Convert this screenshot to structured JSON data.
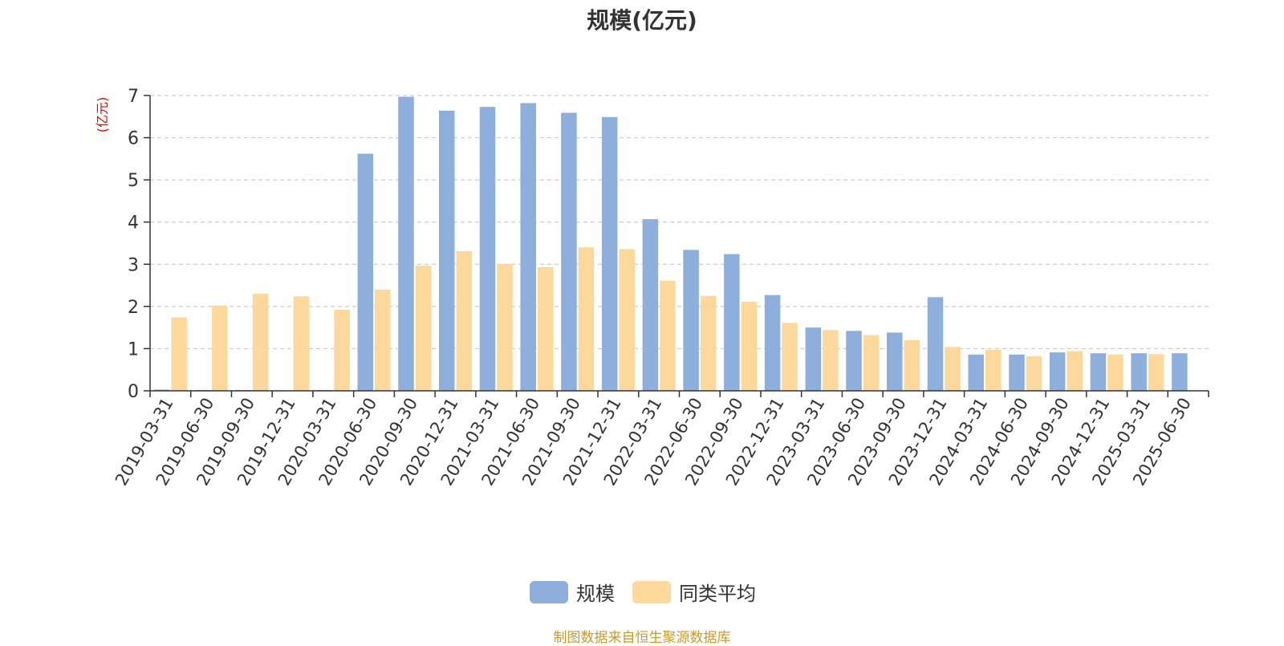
{
  "chart_data": {
    "type": "bar",
    "title": "规模(亿元)",
    "ylabel": "(亿元)",
    "ylim": [
      0,
      7
    ],
    "yticks": [
      0,
      1,
      2,
      3,
      4,
      5,
      6,
      7
    ],
    "grid": true,
    "legend_position": "bottom",
    "categories": [
      "2019-03-31",
      "2019-06-30",
      "2019-09-30",
      "2019-12-31",
      "2020-03-31",
      "2020-06-30",
      "2020-09-30",
      "2020-12-31",
      "2021-03-31",
      "2021-06-30",
      "2021-09-30",
      "2021-12-31",
      "2022-03-31",
      "2022-06-30",
      "2022-09-30",
      "2022-12-31",
      "2023-03-31",
      "2023-06-30",
      "2023-09-30",
      "2023-12-31",
      "2024-03-31",
      "2024-06-30",
      "2024-09-30",
      "2024-12-31",
      "2025-03-31",
      "2025-06-30"
    ],
    "series": [
      {
        "name": "规模",
        "color": "#8eaedb",
        "values": [
          0.03,
          0.02,
          0.02,
          0.01,
          0.02,
          5.62,
          6.97,
          6.64,
          6.73,
          6.82,
          6.59,
          6.49,
          4.07,
          3.34,
          3.24,
          2.27,
          1.5,
          1.42,
          1.38,
          2.22,
          0.86,
          0.86,
          0.91,
          0.89,
          0.89,
          0.89
        ]
      },
      {
        "name": "同类平均",
        "color": "#fdd89c",
        "values": [
          1.74,
          2.02,
          2.3,
          2.24,
          1.92,
          2.4,
          2.97,
          3.31,
          3.01,
          2.93,
          3.4,
          3.36,
          2.61,
          2.25,
          2.11,
          1.61,
          1.44,
          1.32,
          1.2,
          1.04,
          0.97,
          0.82,
          0.94,
          0.86,
          0.87,
          null
        ]
      }
    ]
  },
  "colors": {
    "axis": "#333333",
    "grid": "#cccccc",
    "ylabel": "#ee0000",
    "footer": "#c79a2e"
  },
  "footer": "制图数据来自恒生聚源数据库"
}
